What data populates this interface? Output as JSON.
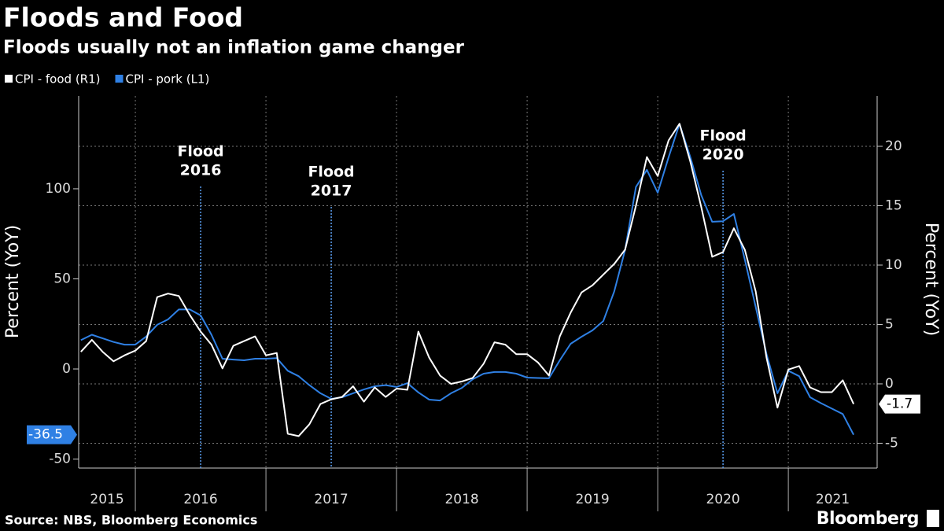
{
  "chart_data": {
    "type": "line",
    "title": "Floods and Food",
    "subtitle": "Floods usually not an inflation game changer",
    "ylabel": "Percent (YoY)",
    "y2label": "Percent (YoY)",
    "source": "Source: NBS, Bloomberg Economics",
    "brand": "Bloomberg",
    "x": [
      2015.583,
      2015.667,
      2015.75,
      2015.833,
      2015.917,
      2016,
      2016.083,
      2016.167,
      2016.25,
      2016.333,
      2016.417,
      2016.5,
      2016.583,
      2016.667,
      2016.75,
      2016.833,
      2016.917,
      2017,
      2017.083,
      2017.167,
      2017.25,
      2017.333,
      2017.417,
      2017.5,
      2017.583,
      2017.667,
      2017.75,
      2017.833,
      2017.917,
      2018,
      2018.083,
      2018.167,
      2018.25,
      2018.333,
      2018.417,
      2018.5,
      2018.583,
      2018.667,
      2018.75,
      2018.833,
      2018.917,
      2019,
      2019.083,
      2019.167,
      2019.25,
      2019.333,
      2019.417,
      2019.5,
      2019.583,
      2019.667,
      2019.75,
      2019.833,
      2019.917,
      2020,
      2020.083,
      2020.167,
      2020.25,
      2020.333,
      2020.417,
      2020.5,
      2020.583,
      2020.667,
      2020.75,
      2020.833,
      2020.917,
      2021,
      2021.083,
      2021.167,
      2021.25,
      2021.333,
      2021.417,
      2021.5
    ],
    "series": [
      {
        "name": "CPI - food (R1)",
        "color": "#ffffff",
        "axis": "y2",
        "values": [
          2.7,
          3.7,
          2.7,
          1.9,
          2.4,
          2.8,
          3.6,
          7.3,
          7.6,
          7.4,
          5.8,
          4.4,
          3.3,
          1.3,
          3.2,
          3.6,
          4.0,
          2.4,
          2.6,
          -4.2,
          -4.4,
          -3.4,
          -1.7,
          -1.3,
          -1.1,
          -0.2,
          -1.5,
          -0.3,
          -1.1,
          -0.4,
          -0.5,
          4.4,
          2.2,
          0.7,
          0,
          0.2,
          0.5,
          1.7,
          3.5,
          3.3,
          2.5,
          2.5,
          1.8,
          0.7,
          4.0,
          6.0,
          7.7,
          8.3,
          9.2,
          10.1,
          11.3,
          15.0,
          19.1,
          17.5,
          20.5,
          21.9,
          18.7,
          14.9,
          10.7,
          11.1,
          13.1,
          11.3,
          7.8,
          2.2,
          -2.0,
          1.2,
          1.5,
          -0.3,
          -0.7,
          -0.7,
          0.3,
          -1.7
        ]
      },
      {
        "name": "CPI - pork (L1)",
        "color": "#2f80e4",
        "axis": "y",
        "values": [
          16,
          19,
          17,
          15,
          13.5,
          13.5,
          18,
          24.5,
          27.5,
          33,
          33,
          29.7,
          19,
          5.7,
          5.2,
          4.8,
          5.7,
          5.7,
          6,
          -1,
          -4,
          -9,
          -13.5,
          -16.6,
          -15.7,
          -13.5,
          -11.4,
          -9.6,
          -9,
          -10,
          -7.9,
          -13,
          -17,
          -17.5,
          -13.5,
          -10.5,
          -5.7,
          -2.6,
          -1.7,
          -1.7,
          -2.6,
          -4.8,
          -5,
          -5.2,
          4.8,
          14,
          17.9,
          21.4,
          26.6,
          43,
          66,
          101,
          110.5,
          97.8,
          117.5,
          136,
          117.5,
          96.5,
          81.7,
          82,
          86,
          60.7,
          34.5,
          8.3,
          -13.5,
          -1,
          -4,
          -15.7,
          -19,
          -22,
          -25,
          -36.5
        ]
      }
    ],
    "xlim": [
      2015.566,
      2021.68
    ],
    "xticks": [
      2016,
      2017,
      2018,
      2019,
      2020,
      2021
    ],
    "year_labels": [
      2015,
      2016,
      2017,
      2018,
      2019,
      2020,
      2021
    ],
    "ylim": [
      -55.0,
      151.5
    ],
    "yticks": [
      -50,
      0,
      50,
      100
    ],
    "y2lim": [
      -7.09,
      24.24
    ],
    "y2ticks": [
      -5,
      0,
      5,
      10,
      15,
      20
    ],
    "grid": true,
    "legend": "top-left",
    "annotations": [
      {
        "text": [
          "Flood",
          "2016"
        ],
        "x": 2016.5
      },
      {
        "text": [
          "Flood",
          "2017"
        ],
        "x": 2017.5
      },
      {
        "text": [
          "Flood",
          "2020"
        ],
        "x": 2020.5
      }
    ]
  }
}
